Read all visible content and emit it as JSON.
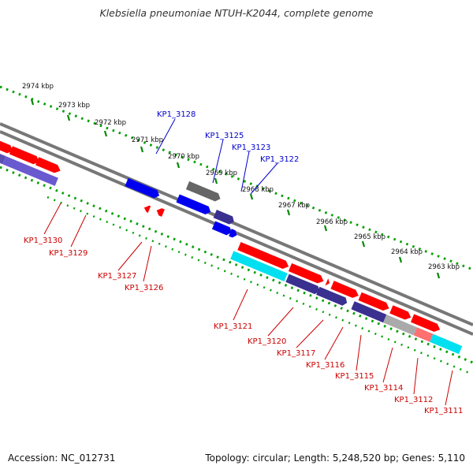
{
  "title": "Klebsiella pneumoniae NTUH-K2044, complete genome",
  "footer": {
    "accession": "Accession: NC_012731",
    "topology": "Topology: circular; Length: 5,248,520 bp; Genes: 5,110"
  },
  "colors": {
    "forward": "#ff0000",
    "reverse_purple": "#5a50b0",
    "blue": "#0000ee",
    "gray": "#666666",
    "cyan": "#00e0f0",
    "dots": "#00a000",
    "label_blue": "#0000cc",
    "label_red": "#cc0000"
  },
  "scale_labels": [
    "2974 kbp",
    "2973 kbp",
    "2972 kbp",
    "2971 kbp",
    "2970 kbp",
    "2969 kbp",
    "2968 kbp",
    "2967 kbp",
    "2966 kbp",
    "2965 kbp",
    "2964 kbp",
    "2963 kbp"
  ],
  "upper_gene_labels": [
    "KP1_3128",
    "KP1_3125",
    "KP1_3123",
    "KP1_3122"
  ],
  "lower_gene_labels": [
    "KP1_3130",
    "KP1_3129",
    "KP1_3127",
    "KP1_3126",
    "KP1_3121",
    "KP1_3120",
    "KP1_3117",
    "KP1_3116",
    "KP1_3115",
    "KP1_3114",
    "KP1_3112",
    "KP1_3111"
  ]
}
